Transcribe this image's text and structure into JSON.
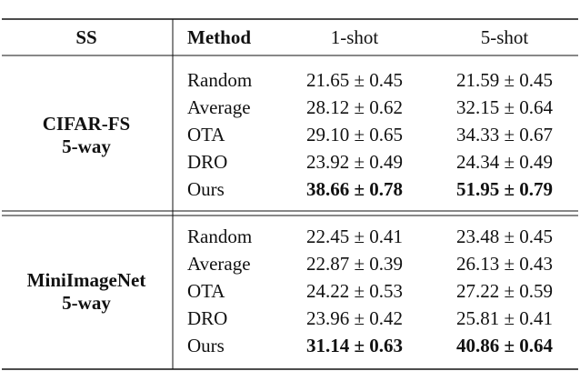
{
  "table": {
    "header": [
      "SS",
      "Method",
      "1-shot",
      "5-shot"
    ],
    "groups": [
      {
        "label": [
          "CIFAR-FS",
          "5-way"
        ],
        "rows": [
          [
            "Random",
            "21.65 ± 0.45",
            "21.59 ± 0.45"
          ],
          [
            "Average",
            "28.12 ± 0.62",
            "32.15 ± 0.64"
          ],
          [
            "OTA",
            "29.10 ± 0.65",
            "34.33 ± 0.67"
          ],
          [
            "DRO",
            "23.92 ± 0.49",
            "24.34 ± 0.49"
          ],
          [
            "Ours",
            "38.66 ± 0.78",
            "51.95 ± 0.79"
          ]
        ]
      },
      {
        "label": [
          "MiniImageNet",
          "5-way"
        ],
        "rows": [
          [
            "Random",
            "22.45 ± 0.41",
            "23.48 ± 0.45"
          ],
          [
            "Average",
            "22.87 ± 0.39",
            "26.13 ± 0.43"
          ],
          [
            "OTA",
            "24.22 ± 0.53",
            "27.22 ± 0.59"
          ],
          [
            "DRO",
            "23.96 ± 0.42",
            "25.81 ± 0.41"
          ],
          [
            "Ours",
            "31.14 ± 0.63",
            "40.86 ± 0.64"
          ]
        ]
      }
    ]
  }
}
